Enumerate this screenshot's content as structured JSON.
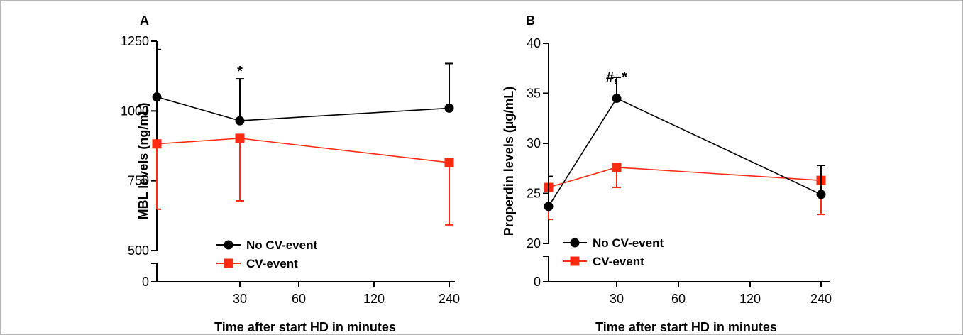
{
  "colors": {
    "no_cv_event": "#000000",
    "cv_event": "#ff2a12"
  },
  "chart_data": [
    {
      "type": "line",
      "panel_label": "A",
      "xlabel": "Time after start HD in minutes",
      "ylabel": "MBL levels (ng/mL)",
      "categories": [
        "0",
        "30",
        "60",
        "120",
        "240"
      ],
      "x_tick_labels": [
        "30",
        "60",
        "120",
        "240"
      ],
      "y_tick_labels": [
        "0",
        "500",
        "750",
        "1000",
        "1250"
      ],
      "y_ticks": [
        0,
        500,
        750,
        1000,
        1250
      ],
      "ylim": [
        0,
        1250
      ],
      "y_axis_break": [
        0,
        500
      ],
      "legend_position": "bottom-left",
      "annotations": [
        {
          "x": "30",
          "text": "*"
        }
      ],
      "series": [
        {
          "name": "No CV-event",
          "marker": "circle",
          "color": "#000000",
          "x": [
            "0",
            "30",
            "240"
          ],
          "values": [
            1050,
            965,
            1010
          ],
          "error_upper": [
            1220,
            1115,
            1170
          ],
          "error_lower": [
            null,
            null,
            null
          ]
        },
        {
          "name": "CV-event",
          "marker": "square",
          "color": "#ff2a12",
          "x": [
            "0",
            "30",
            "240"
          ],
          "values": [
            882,
            902,
            815
          ],
          "error_upper": [
            null,
            null,
            null
          ],
          "error_lower": [
            648,
            678,
            592
          ]
        }
      ]
    },
    {
      "type": "line",
      "panel_label": "B",
      "xlabel": "Time after start HD in minutes",
      "ylabel": "Properdin levels (µg/mL)",
      "categories": [
        "0",
        "30",
        "60",
        "120",
        "240"
      ],
      "x_tick_labels": [
        "30",
        "60",
        "120",
        "240"
      ],
      "y_tick_labels": [
        "0",
        "20",
        "25",
        "30",
        "35",
        "40"
      ],
      "y_ticks": [
        0,
        20,
        25,
        30,
        35,
        40
      ],
      "ylim": [
        0,
        40
      ],
      "y_axis_break": [
        0,
        20
      ],
      "legend_position": "bottom-left",
      "annotations": [
        {
          "x": "30",
          "text": "#, *"
        }
      ],
      "series": [
        {
          "name": "No CV-event",
          "marker": "circle",
          "color": "#000000",
          "x": [
            "0",
            "30",
            "240"
          ],
          "values": [
            23.7,
            34.5,
            24.9
          ],
          "error_upper": [
            26.7,
            36.6,
            27.8
          ],
          "error_lower": [
            null,
            null,
            null
          ]
        },
        {
          "name": "CV-event",
          "marker": "square",
          "color": "#ff2a12",
          "x": [
            "0",
            "30",
            "240"
          ],
          "values": [
            25.6,
            27.6,
            26.3
          ],
          "error_upper": [
            null,
            null,
            null
          ],
          "error_lower": [
            22.4,
            25.6,
            22.9
          ]
        }
      ]
    }
  ]
}
